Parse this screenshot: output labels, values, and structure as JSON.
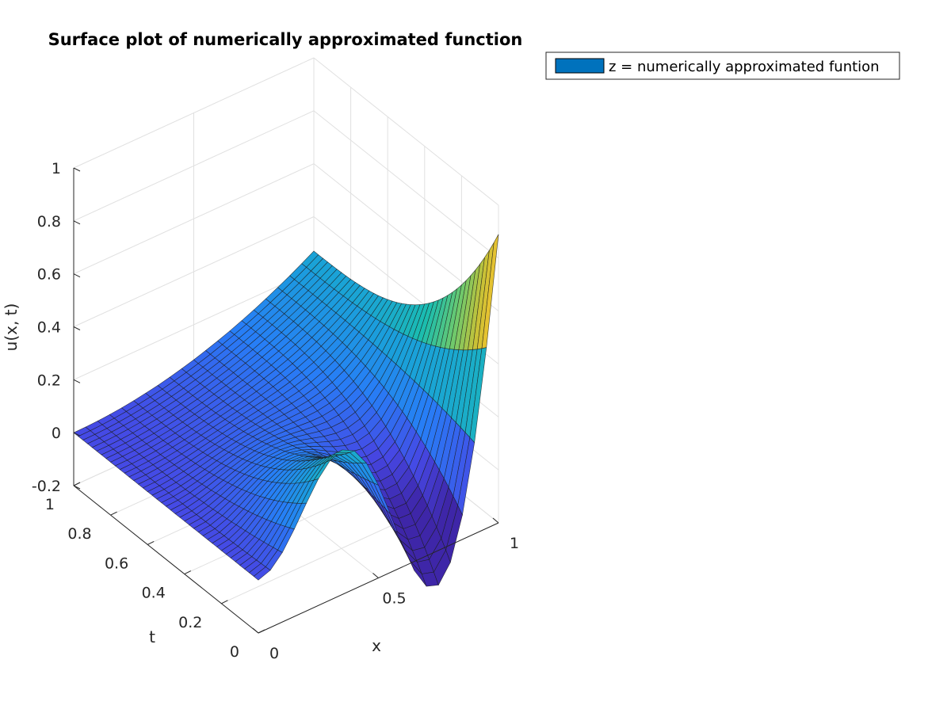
{
  "chart_data": {
    "type": "surface",
    "title": "Surface plot of numerically approximated function",
    "xlabel": "x",
    "ylabel": "t",
    "zlabel": "u(x, t)",
    "xlim": [
      0,
      1
    ],
    "ylim": [
      0,
      1
    ],
    "zlim": [
      -0.2,
      1
    ],
    "x_ticks": [
      "0",
      "0.5",
      "1"
    ],
    "t_ticks": [
      "0",
      "0.2",
      "0.4",
      "0.6",
      "0.8",
      "1"
    ],
    "z_ticks": [
      "-0.2",
      "0",
      "0.2",
      "0.4",
      "0.6",
      "0.8",
      "1"
    ],
    "grid": true,
    "colormap": "parula",
    "legend": {
      "placement": "top-right",
      "entries": [
        {
          "label": "z = numerically approximated funtion",
          "color": "#0072BD"
        }
      ]
    },
    "surface": {
      "x_nodes": 21,
      "t_nodes": 41,
      "boundary": {
        "x0": "u(0, t) = 0",
        "t0": "u(x, 0) = x * sin(2*pi*x) approx, ending at 0.85 at x = 1"
      },
      "sample_values": [
        {
          "x": 0.0,
          "t": 1.0,
          "u": 0.0
        },
        {
          "x": 0.0,
          "t": 0.0,
          "u": 0.0
        },
        {
          "x": 1.0,
          "t": 1.0,
          "u": 0.27
        },
        {
          "x": 0.5,
          "t": 0.0,
          "u": 0.25
        },
        {
          "x": 0.75,
          "t": 0.0,
          "u": -0.12
        },
        {
          "x": 1.0,
          "t": 0.0,
          "u": 0.85
        }
      ]
    }
  }
}
